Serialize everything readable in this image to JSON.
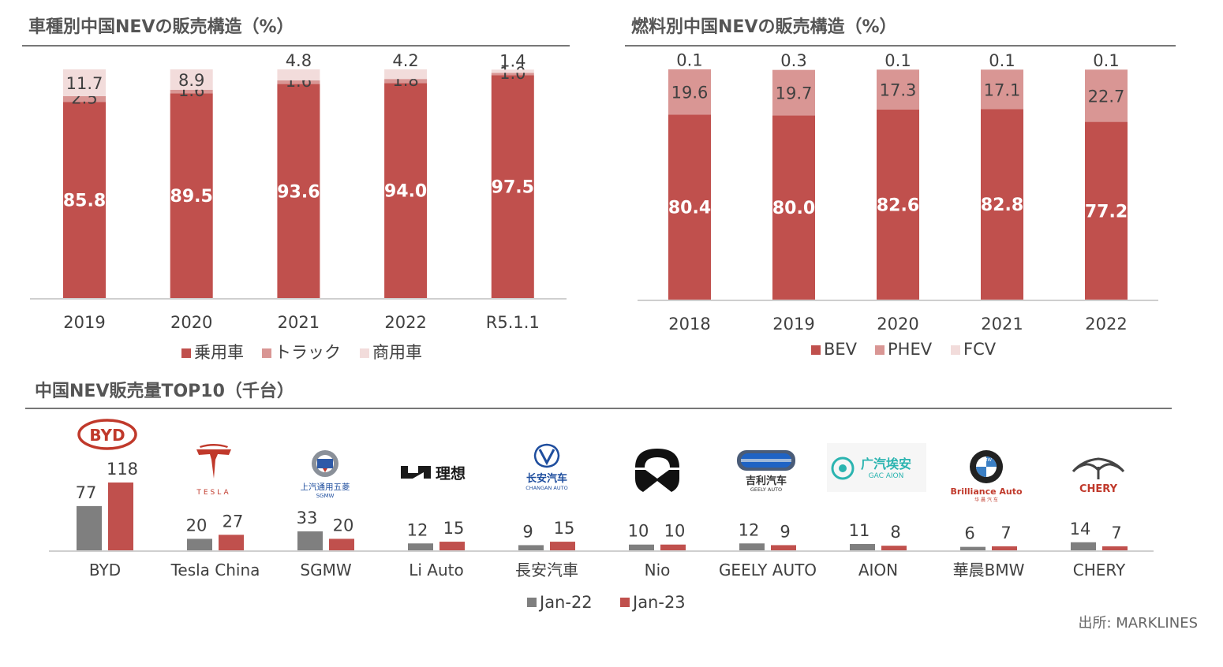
{
  "colors": {
    "primary": "#c0504d",
    "secondary": "#d99694",
    "tertiary": "#f2dcdb",
    "jan22": "#7f7f7f",
    "jan23": "#c0504d"
  },
  "chart1": {
    "title": "車種別中国NEVの販売構造（%）"
  },
  "chart2": {
    "title": "燃料別中国NEVの販売構造（%）"
  },
  "chart3": {
    "title": "中国NEV販売量TOP10（千台）"
  },
  "source": "出所: MARKLINES",
  "logos": {
    "byd": "BYD",
    "tesla": "TESLA",
    "sgmw_cn": "上汽通用五菱",
    "sgmw_en": "SGMW",
    "li": "理想",
    "changan_cn": "长安汽车",
    "changan_en": "CHANGAN AUTO",
    "geely_cn": "吉利汽车",
    "geely_en": "GEELY AUTO",
    "aion_cn": "广汽埃安",
    "aion_en": "GAC AION",
    "bmw": "BMW",
    "brilliance": "Brilliance Auto",
    "brilliance_cn": "华 晨 汽 车",
    "chery": "CHERY"
  },
  "chart_data": [
    {
      "type": "bar",
      "stacked": true,
      "title": "車種別中国NEVの販売構造（%）",
      "categories": [
        "2019",
        "2020",
        "2021",
        "2022",
        "R5.1.1"
      ],
      "series": [
        {
          "name": "乗用車",
          "values": [
            85.8,
            89.5,
            93.6,
            94.0,
            97.5
          ],
          "labels": [
            "85.8",
            "89.5",
            "93.6",
            "94.0",
            "97.5"
          ]
        },
        {
          "name": "トラック",
          "values": [
            2.5,
            1.6,
            1.6,
            1.8,
            1.0
          ],
          "labels": [
            "2.5",
            "1.6",
            "1.6",
            "1.8",
            "1.0"
          ]
        },
        {
          "name": "商用車",
          "values": [
            11.7,
            8.9,
            4.8,
            4.2,
            1.4
          ],
          "labels": [
            "11.7",
            "8.9",
            "4.8",
            "4.2",
            "1.4"
          ]
        }
      ],
      "ylim": [
        0,
        100
      ],
      "grid": false,
      "legend": "bottom"
    },
    {
      "type": "bar",
      "stacked": true,
      "title": "燃料別中国NEVの販売構造（%）",
      "categories": [
        "2018",
        "2019",
        "2020",
        "2021",
        "2022"
      ],
      "series": [
        {
          "name": "BEV",
          "values": [
            80.4,
            80.0,
            82.6,
            82.8,
            77.2
          ],
          "labels": [
            "80.4",
            "80.0",
            "82.6",
            "82.8",
            "77.2"
          ]
        },
        {
          "name": "PHEV",
          "values": [
            19.6,
            19.7,
            17.3,
            17.1,
            22.7
          ],
          "labels": [
            "19.6",
            "19.7",
            "17.3",
            "17.1",
            "22.7"
          ]
        },
        {
          "name": "FCV",
          "values": [
            0.1,
            0.3,
            0.1,
            0.1,
            0.1
          ],
          "labels": [
            "0.1",
            "0.3",
            "0.1",
            "0.1",
            "0.1"
          ]
        }
      ],
      "ylim": [
        0,
        100
      ],
      "grid": false,
      "legend": "bottom"
    },
    {
      "type": "bar",
      "title": "中国NEV販売量TOP10（千台）",
      "categories": [
        "BYD",
        "Tesla China",
        "SGMW",
        "Li Auto",
        "長安汽車",
        "Nio",
        "GEELY AUTO",
        "AION",
        "華晨BMW",
        "CHERY"
      ],
      "series": [
        {
          "name": "Jan-22",
          "values": [
            77,
            20,
            33,
            12,
            9,
            10,
            12,
            11,
            6,
            14
          ],
          "labels": [
            "77",
            "20",
            "33",
            "12",
            "9",
            "10",
            "12",
            "11",
            "6",
            "14"
          ]
        },
        {
          "name": "Jan-23",
          "values": [
            118,
            27,
            20,
            15,
            15,
            10,
            9,
            8,
            7,
            7
          ],
          "labels": [
            "118",
            "27",
            "20",
            "15",
            "15",
            "10",
            "9",
            "8",
            "7",
            "7"
          ]
        }
      ],
      "ylim": [
        0,
        130
      ],
      "grid": false,
      "legend": "bottom"
    }
  ]
}
